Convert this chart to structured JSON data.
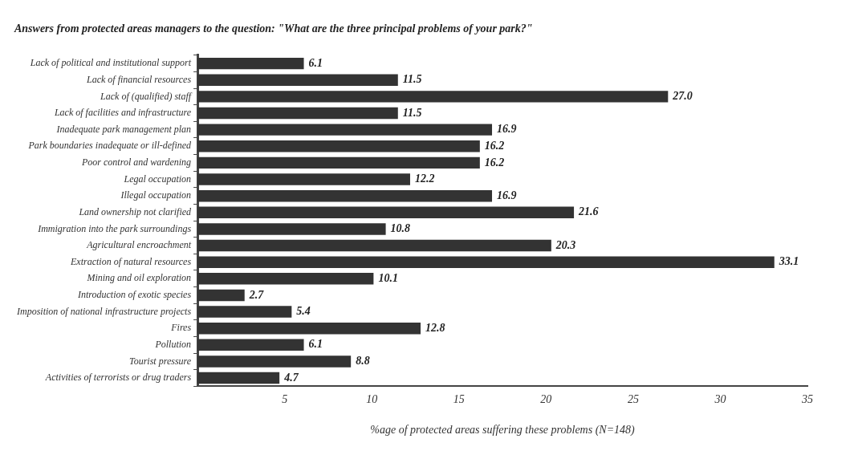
{
  "chart_data": {
    "type": "bar",
    "orientation": "horizontal",
    "title": "Answers from protected areas managers to the question: \"What are the three principal problems of your park?\"",
    "xlabel": "%age of protected areas suffering these problems (N=148)",
    "categories": [
      "Lack of political and institutional support",
      "Lack of financial resources",
      "Lack of (qualified) staff",
      "Lack of facilities and infrastructure",
      "Inadequate park management plan",
      "Park boundaries inadequate or ill-defined",
      "Poor control and wardening",
      "Legal occupation",
      "Illegal occupation",
      "Land ownership not clarified",
      "Immigration into the park surroundings",
      "Agricultural encroachment",
      "Extraction of natural resources",
      "Mining and oil exploration",
      "Introduction of exotic species",
      "Imposition of national infrastructure projects",
      "Fires",
      "Pollution",
      "Tourist pressure",
      "Activities of terrorists or drug traders"
    ],
    "values": [
      6.1,
      11.5,
      27.0,
      11.5,
      16.9,
      16.2,
      16.2,
      12.2,
      16.9,
      21.6,
      10.8,
      20.3,
      33.1,
      10.1,
      2.7,
      5.4,
      12.8,
      6.1,
      8.8,
      4.7
    ],
    "value_labels": [
      "6.1",
      "11.5",
      "27.0",
      "11.5",
      "16.9",
      "16.2",
      "16.2",
      "12.2",
      "16.9",
      "21.6",
      "10.8",
      "20.3",
      "33.1",
      "10.1",
      "2.7",
      "5.4",
      "12.8",
      "6.1",
      "8.8",
      "4.7"
    ],
    "color": "#333333",
    "xlim": [
      0,
      35
    ],
    "xticks": [
      5,
      10,
      15,
      20,
      25,
      30,
      35
    ],
    "grid": false,
    "legend": false
  }
}
